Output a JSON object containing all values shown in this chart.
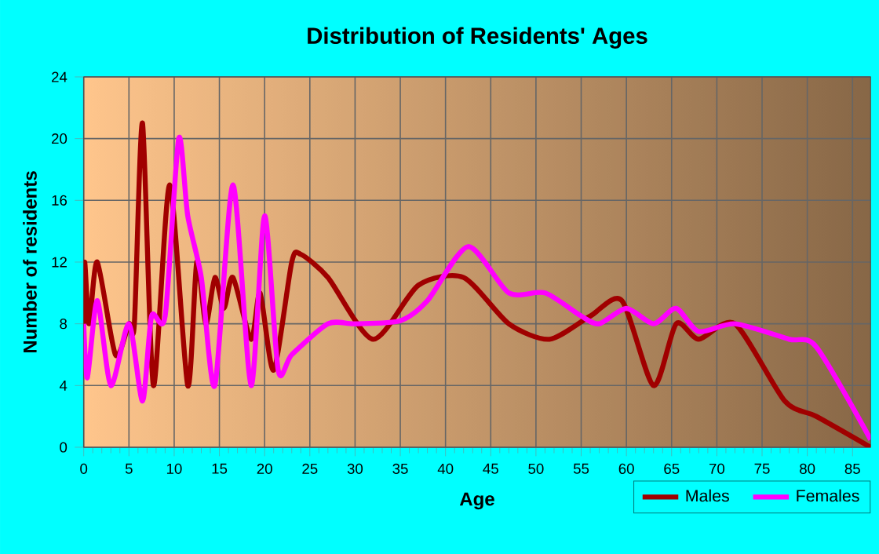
{
  "chart_data": {
    "type": "line",
    "title": "Distribution of Residents' Ages",
    "xlabel": "Age",
    "ylabel": "Number of residents",
    "xlim": [
      0,
      87
    ],
    "xticks": [
      0,
      5,
      10,
      15,
      20,
      25,
      30,
      35,
      40,
      45,
      50,
      55,
      60,
      65,
      70,
      75,
      80,
      85
    ],
    "ylim": [
      0,
      24
    ],
    "yticks": [
      0,
      4,
      8,
      12,
      16,
      20,
      24
    ],
    "grid": true,
    "legend": "bottom right",
    "series": [
      {
        "name": "Males",
        "color": "#a00000",
        "x": [
          0,
          0.1,
          0.6,
          1.5,
          3.5,
          5,
          5.6,
          6.5,
          7.7,
          9.5,
          11.5,
          12.5,
          13.5,
          14.5,
          15.5,
          16.5,
          18.5,
          19.5,
          21,
          23,
          24,
          27,
          32,
          37,
          42,
          47,
          51.5,
          56,
          59.5,
          63,
          65.5,
          68,
          72,
          77.5,
          81,
          87
        ],
        "values": [
          7,
          12,
          8,
          12,
          6,
          8,
          8,
          21,
          4,
          17,
          4,
          12,
          8,
          11,
          9,
          11,
          7,
          10,
          5,
          12,
          12.5,
          11,
          7,
          10.5,
          11,
          8,
          7,
          8.5,
          9.5,
          4,
          8,
          7,
          8,
          3,
          2,
          0
        ]
      },
      {
        "name": "Females",
        "color": "#ff00ff",
        "x": [
          0,
          0.4,
          1.5,
          3,
          5,
          6.5,
          7.5,
          9,
          10.5,
          11.5,
          13,
          14.5,
          16.5,
          18.5,
          20,
          21.5,
          23,
          27,
          30,
          35,
          38,
          42.5,
          47,
          51,
          55,
          57,
          60,
          63,
          65.5,
          68,
          72,
          78,
          81,
          87
        ],
        "values": [
          8,
          4.5,
          9.5,
          4,
          8,
          3,
          8.5,
          8.5,
          20,
          15,
          11,
          4,
          17,
          4,
          15,
          5,
          6,
          8,
          8,
          8.2,
          9.5,
          13,
          10,
          10,
          8.5,
          8,
          9,
          8,
          9,
          7.5,
          8,
          7,
          6.5,
          0.5
        ]
      }
    ]
  }
}
